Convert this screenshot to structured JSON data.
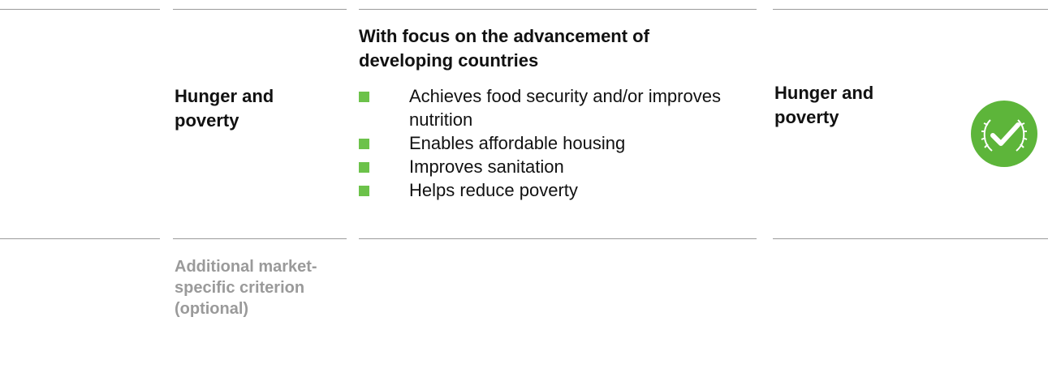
{
  "columns": {
    "criterion_label": "Hunger and poverty",
    "description_heading": "With focus on the advancement of developing countries",
    "bullets": [
      "Achieves food security and/or improves nutrition",
      "Enables affordable housing",
      "Improves sanitation",
      "Helps reduce poverty"
    ],
    "result_label": "Hunger and poverty"
  },
  "secondary_row": {
    "optional_label": "Additional market-specific criterion (optional)"
  },
  "colors": {
    "accent_green": "#6cc24a",
    "badge_green": "#5db53a",
    "rule_gray": "#9a9a9a",
    "muted_text": "#9a9a9a"
  },
  "icons": {
    "bullet": "green-square",
    "status_badge": "check-laurel-icon"
  }
}
